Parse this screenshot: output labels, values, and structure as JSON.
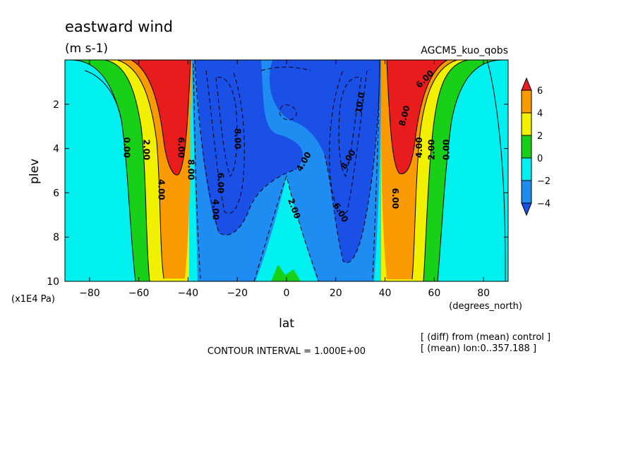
{
  "chart_data": {
    "type": "heatmap",
    "title": "eastward wind",
    "units": "(m s-1)",
    "experiment": "AGCM5_kuo_qobs",
    "xlabel": "lat",
    "x_units": "(degrees_north)",
    "ylabel": "plev",
    "y_units": "(x1E4 Pa)",
    "xlim": [
      -90,
      90
    ],
    "ylim": [
      0,
      10
    ],
    "y_inverted": true,
    "x_ticks": [
      -80,
      -60,
      -40,
      -20,
      0,
      20,
      40,
      60,
      80
    ],
    "y_ticks": [
      2,
      4,
      6,
      8,
      10
    ],
    "contour_interval": "CONTOUR INTERVAL = 1.000E+00",
    "notes": [
      "[ (diff) from (mean) control ]",
      "[ (mean) lon:0..357.188 ]"
    ],
    "colorbar": {
      "ticks": [
        6,
        4,
        2,
        0,
        -2,
        -4
      ],
      "bands": [
        {
          "range": "> 6",
          "color": "#e81c1c"
        },
        {
          "range": "4 to 6",
          "color": "#f89a00"
        },
        {
          "range": "2 to 4",
          "color": "#f0f000"
        },
        {
          "range": "0 to 2",
          "color": "#18d018"
        },
        {
          "range": "-2 to 0",
          "color": "#00f0f0"
        },
        {
          "range": "-4 to -2",
          "color": "#1e8cf0"
        },
        {
          "range": "< -4",
          "color": "#1a50e6"
        }
      ]
    },
    "contour_labels": [
      {
        "text": "0.00",
        "lat": -66,
        "p": 3.0,
        "rot": 90
      },
      {
        "text": "2.00",
        "lat": -58,
        "p": 3.1,
        "rot": 90
      },
      {
        "text": "4.00",
        "lat": -52,
        "p": 4.9,
        "rot": 90
      },
      {
        "text": "6.00",
        "lat": -44,
        "p": 3.0,
        "rot": 90
      },
      {
        "text": "8.00",
        "lat": -40,
        "p": 4.0,
        "rot": 90
      },
      {
        "text": "6.00",
        "lat": -28,
        "p": 4.6,
        "rot": 90
      },
      {
        "text": "8.00",
        "lat": -21,
        "p": 2.6,
        "rot": 90
      },
      {
        "text": "4.00",
        "lat": -30,
        "p": 5.8,
        "rot": 90
      },
      {
        "text": "4.00",
        "lat": 8,
        "p": 3.7,
        "rot": -60
      },
      {
        "text": "2.00",
        "lat": 2,
        "p": 5.8,
        "rot": 70
      },
      {
        "text": "8.00",
        "lat": 26,
        "p": 3.6,
        "rot": -60
      },
      {
        "text": "6.00",
        "lat": 21,
        "p": 6.0,
        "rot": 60
      },
      {
        "text": "10.0",
        "lat": 31,
        "p": 1.0,
        "rot": -80
      },
      {
        "text": "6.00",
        "lat": 43,
        "p": 5.3,
        "rot": 90
      },
      {
        "text": "8.00",
        "lat": 49,
        "p": 1.6,
        "rot": -75
      },
      {
        "text": "6.00",
        "lat": 57,
        "p": 0.0,
        "rot": -45
      },
      {
        "text": "4.00",
        "lat": 55,
        "p": 3.0,
        "rot": -90
      },
      {
        "text": "2.00",
        "lat": 60,
        "p": 3.1,
        "rot": -90
      },
      {
        "text": "0.00",
        "lat": 66,
        "p": 3.1,
        "rot": -90
      }
    ]
  }
}
